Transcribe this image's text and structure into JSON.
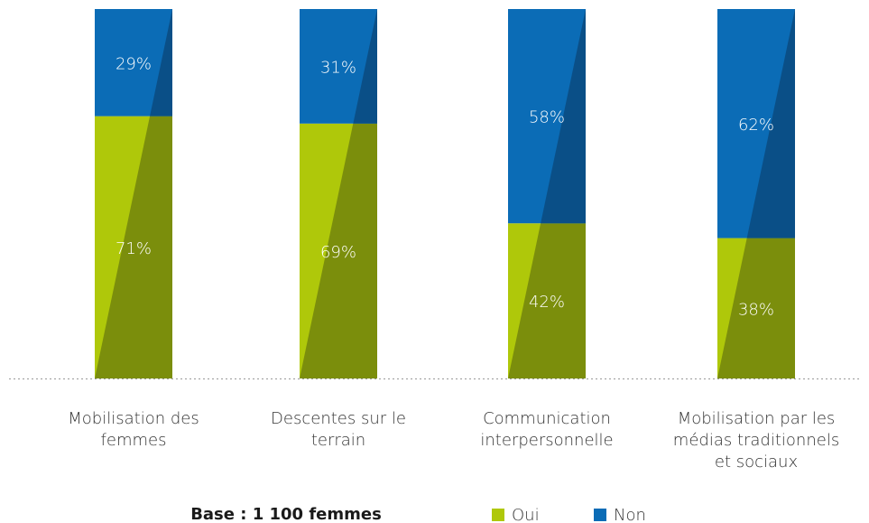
{
  "chart_data": {
    "type": "stacked_bar",
    "categories": [
      "Mobilisation des femmes",
      "Descentes sur le terrain",
      "Communication interpersonnelle",
      "Mobilisation par les médias traditionnels et sociaux"
    ],
    "series": [
      {
        "name": "Oui",
        "color": "#afc80a",
        "shade": "#7b8e0c",
        "values": [
          71,
          69,
          42,
          38
        ],
        "value_labels": [
          "71%",
          "69%",
          "42%",
          "38%"
        ]
      },
      {
        "name": "Non",
        "color": "#0b6cb6",
        "shade": "#0a4f87",
        "values": [
          29,
          31,
          58,
          62
        ],
        "value_labels": [
          "29%",
          "31%",
          "58%",
          "62%"
        ]
      }
    ],
    "ylim": [
      0,
      100
    ],
    "note": "Base : 1 100 femmes"
  }
}
